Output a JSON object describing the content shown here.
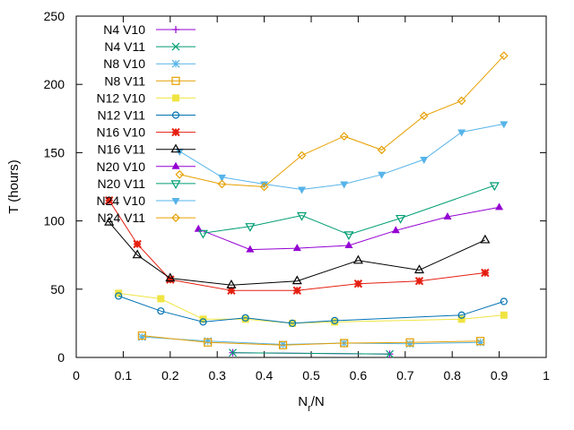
{
  "chart_data": {
    "type": "line",
    "title": "",
    "xlabel": "N_r/N",
    "ylabel": "T (hours)",
    "xlim": [
      0,
      1
    ],
    "ylim": [
      0,
      250
    ],
    "xticks": [
      "0",
      "0.1",
      "0.2",
      "0.3",
      "0.4",
      "0.5",
      "0.6",
      "0.7",
      "0.8",
      "0.9",
      "1"
    ],
    "yticks": [
      "0",
      "50",
      "100",
      "150",
      "200",
      "250"
    ],
    "grid": false,
    "legend_position": "top-left",
    "series": [
      {
        "name": "N4 V10",
        "color": "#9400d3",
        "marker": "plus",
        "points": [
          [
            0.333,
            3.5
          ],
          [
            0.667,
            2.5
          ]
        ]
      },
      {
        "name": "N4 V11",
        "color": "#009e73",
        "marker": "cross",
        "points": [
          [
            0.333,
            3.5
          ],
          [
            0.667,
            2.5
          ]
        ]
      },
      {
        "name": "N8 V10",
        "color": "#56b4e9",
        "marker": "star",
        "points": [
          [
            0.14,
            15
          ],
          [
            0.28,
            12
          ],
          [
            0.44,
            9.5
          ],
          [
            0.57,
            10.5
          ],
          [
            0.71,
            10
          ],
          [
            0.86,
            11
          ]
        ]
      },
      {
        "name": "N8 V11",
        "color": "#e69f00",
        "marker": "square-open",
        "points": [
          [
            0.14,
            16
          ],
          [
            0.28,
            11
          ],
          [
            0.44,
            9
          ],
          [
            0.57,
            10.5
          ],
          [
            0.71,
            11
          ],
          [
            0.86,
            12
          ]
        ]
      },
      {
        "name": "N12 V10",
        "color": "#f0e442",
        "marker": "square-filled",
        "points": [
          [
            0.09,
            47
          ],
          [
            0.18,
            43
          ],
          [
            0.27,
            28
          ],
          [
            0.36,
            28
          ],
          [
            0.46,
            25
          ],
          [
            0.55,
            26
          ],
          [
            0.82,
            28
          ],
          [
            0.91,
            31
          ]
        ]
      },
      {
        "name": "N12 V11",
        "color": "#0072b2",
        "marker": "circle-open",
        "points": [
          [
            0.09,
            45
          ],
          [
            0.18,
            34
          ],
          [
            0.27,
            26
          ],
          [
            0.36,
            29
          ],
          [
            0.46,
            25
          ],
          [
            0.55,
            27
          ],
          [
            0.82,
            31
          ],
          [
            0.91,
            41
          ]
        ]
      },
      {
        "name": "N16 V10",
        "color": "#e51e10",
        "marker": "star-filled",
        "points": [
          [
            0.07,
            115
          ],
          [
            0.13,
            83
          ],
          [
            0.2,
            57
          ],
          [
            0.33,
            49
          ],
          [
            0.47,
            49
          ],
          [
            0.6,
            54
          ],
          [
            0.73,
            56
          ],
          [
            0.87,
            62
          ]
        ]
      },
      {
        "name": "N16 V11",
        "color": "#000000",
        "marker": "triangle-open",
        "points": [
          [
            0.07,
            99
          ],
          [
            0.13,
            75
          ],
          [
            0.2,
            58
          ],
          [
            0.33,
            53
          ],
          [
            0.47,
            56
          ],
          [
            0.6,
            71
          ],
          [
            0.73,
            64
          ],
          [
            0.87,
            86
          ]
        ]
      },
      {
        "name": "N20 V10",
        "color": "#9400d3",
        "marker": "triangle-filled",
        "points": [
          [
            0.26,
            94
          ],
          [
            0.37,
            79
          ],
          [
            0.47,
            80
          ],
          [
            0.58,
            82
          ],
          [
            0.68,
            93
          ],
          [
            0.79,
            103
          ],
          [
            0.9,
            110
          ]
        ]
      },
      {
        "name": "N20 V11",
        "color": "#009e73",
        "marker": "inv-triangle-open",
        "points": [
          [
            0.27,
            91
          ],
          [
            0.37,
            96
          ],
          [
            0.48,
            104
          ],
          [
            0.58,
            90
          ],
          [
            0.69,
            102
          ],
          [
            0.89,
            126
          ]
        ]
      },
      {
        "name": "N24 V10",
        "color": "#56b4e9",
        "marker": "inv-triangle-filled",
        "points": [
          [
            0.22,
            151
          ],
          [
            0.31,
            132
          ],
          [
            0.4,
            127
          ],
          [
            0.48,
            123
          ],
          [
            0.57,
            127
          ],
          [
            0.65,
            134
          ],
          [
            0.74,
            145
          ],
          [
            0.82,
            165
          ],
          [
            0.91,
            171
          ]
        ]
      },
      {
        "name": "N24 V11",
        "color": "#e69f00",
        "marker": "diamond-open",
        "points": [
          [
            0.22,
            134
          ],
          [
            0.31,
            127
          ],
          [
            0.4,
            125
          ],
          [
            0.48,
            148
          ],
          [
            0.57,
            162
          ],
          [
            0.65,
            152
          ],
          [
            0.74,
            177
          ],
          [
            0.82,
            188
          ],
          [
            0.91,
            221
          ]
        ]
      }
    ]
  }
}
